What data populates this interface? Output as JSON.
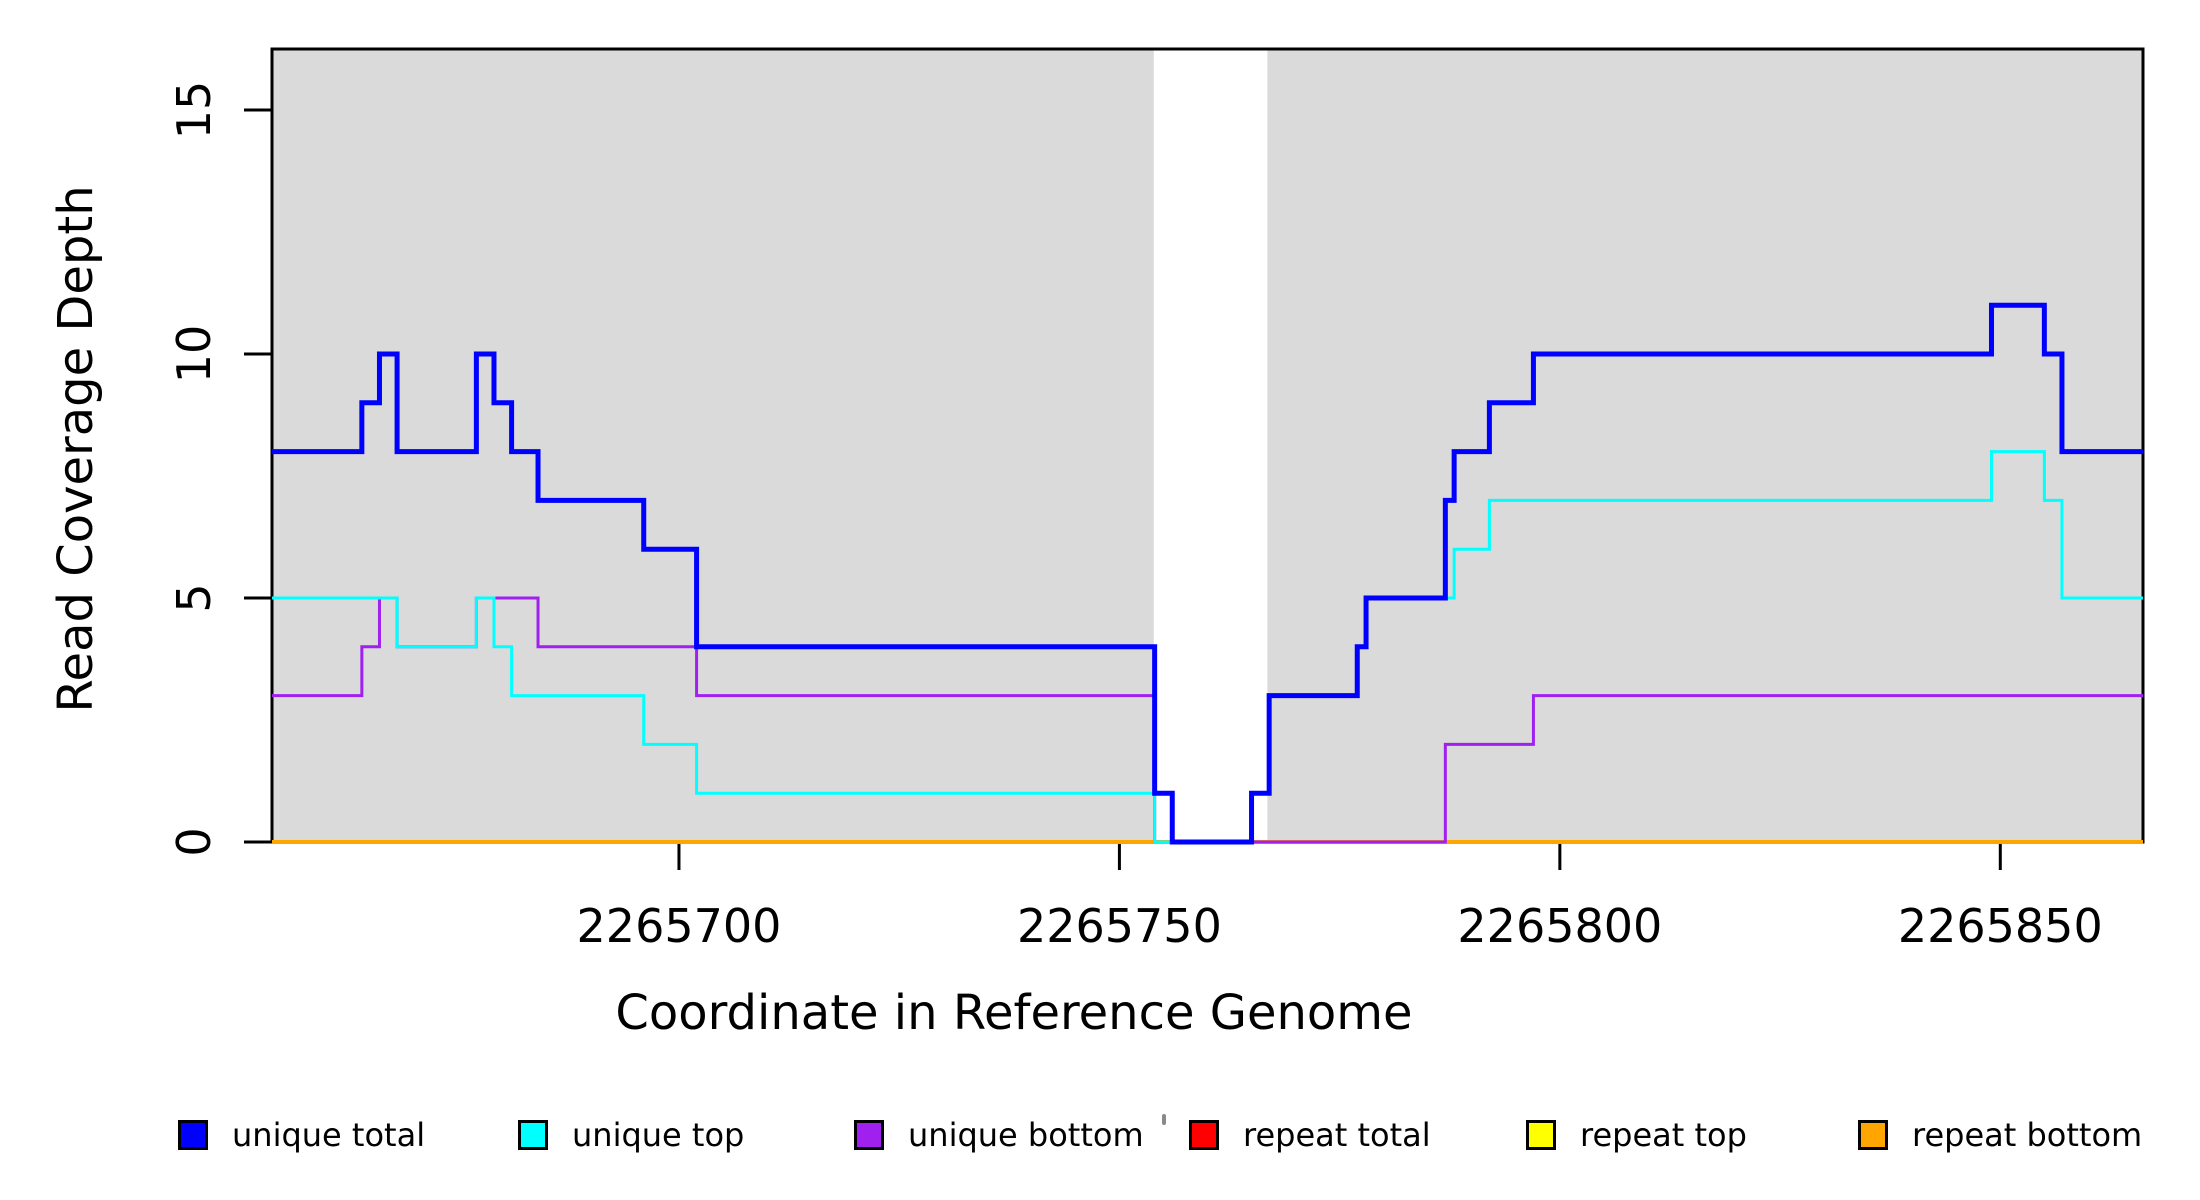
{
  "chart_data": {
    "type": "line",
    "subtype": "step",
    "title": "",
    "xlabel": "Coordinate in Reference Genome",
    "ylabel": "Read Coverage Depth",
    "x_ticks": [
      2265700,
      2265750,
      2265800,
      2265850
    ],
    "y_ticks": [
      0,
      5,
      10,
      15
    ],
    "x_range": [
      2265653.8,
      2265866.2
    ],
    "y_range": [
      0,
      16.25
    ],
    "grid": false,
    "plot_background": "#ffffff",
    "shade_color": "#dadada",
    "shaded_regions": [
      [
        2265653.8,
        2265753.9
      ],
      [
        2265766.8,
        2265866.2
      ]
    ],
    "gap_region": [
      2265753.9,
      2265766.8
    ],
    "series": [
      {
        "name": "unique total",
        "color": "#0000ff",
        "line_width": 5,
        "points": [
          [
            2265653.8,
            8
          ],
          [
            2265664,
            9
          ],
          [
            2265666,
            10
          ],
          [
            2265668,
            8
          ],
          [
            2265677,
            10
          ],
          [
            2265679,
            9
          ],
          [
            2265681,
            8
          ],
          [
            2265684,
            7
          ],
          [
            2265696,
            6
          ],
          [
            2265702,
            4
          ],
          [
            2265754,
            1
          ],
          [
            2265756,
            0
          ],
          [
            2265765,
            1
          ],
          [
            2265767,
            3
          ],
          [
            2265777,
            4
          ],
          [
            2265778,
            5
          ],
          [
            2265787,
            7
          ],
          [
            2265788,
            8
          ],
          [
            2265792,
            9
          ],
          [
            2265797,
            10
          ],
          [
            2265849,
            11
          ],
          [
            2265855,
            10
          ],
          [
            2265857,
            8
          ]
        ],
        "x_end": 2265866.2
      },
      {
        "name": "unique top",
        "color": "#00ffff",
        "line_width": 3,
        "points": [
          [
            2265653.8,
            5
          ],
          [
            2265668,
            4
          ],
          [
            2265677,
            5
          ],
          [
            2265679,
            4
          ],
          [
            2265681,
            3
          ],
          [
            2265696,
            2
          ],
          [
            2265702,
            1
          ],
          [
            2265754,
            0
          ],
          [
            2265765,
            1
          ],
          [
            2265767,
            3
          ],
          [
            2265777,
            4
          ],
          [
            2265778,
            5
          ],
          [
            2265788,
            6
          ],
          [
            2265792,
            7
          ],
          [
            2265849,
            8
          ],
          [
            2265855,
            7
          ],
          [
            2265857,
            5
          ]
        ],
        "x_end": 2265866.2
      },
      {
        "name": "unique bottom",
        "color": "#a020f0",
        "line_width": 3,
        "points": [
          [
            2265653.8,
            3
          ],
          [
            2265664,
            4
          ],
          [
            2265666,
            5
          ],
          [
            2265668,
            4
          ],
          [
            2265677,
            5
          ],
          [
            2265684,
            4
          ],
          [
            2265702,
            3
          ],
          [
            2265754,
            0
          ],
          [
            2265787,
            2
          ],
          [
            2265797,
            3
          ]
        ],
        "x_end": 2265866.2
      },
      {
        "name": "repeat total",
        "color": "#ff0000",
        "line_width": 3,
        "points": [
          [
            2265653.8,
            0
          ]
        ],
        "x_end": 2265866.2
      },
      {
        "name": "repeat top",
        "color": "#ffff00",
        "line_width": 3,
        "points": [
          [
            2265653.8,
            0
          ]
        ],
        "x_end": 2265866.2
      },
      {
        "name": "repeat bottom",
        "color": "#ffa500",
        "line_width": 4,
        "points": [
          [
            2265653.8,
            0
          ]
        ],
        "x_end": 2265866.2
      }
    ],
    "draw_order": [
      "repeat total",
      "repeat top",
      "repeat bottom",
      "unique bottom",
      "unique top",
      "unique total"
    ],
    "legend_order": [
      "unique total",
      "unique top",
      "unique bottom",
      "repeat total",
      "repeat top",
      "repeat bottom"
    ],
    "legend_position": "bottom"
  }
}
